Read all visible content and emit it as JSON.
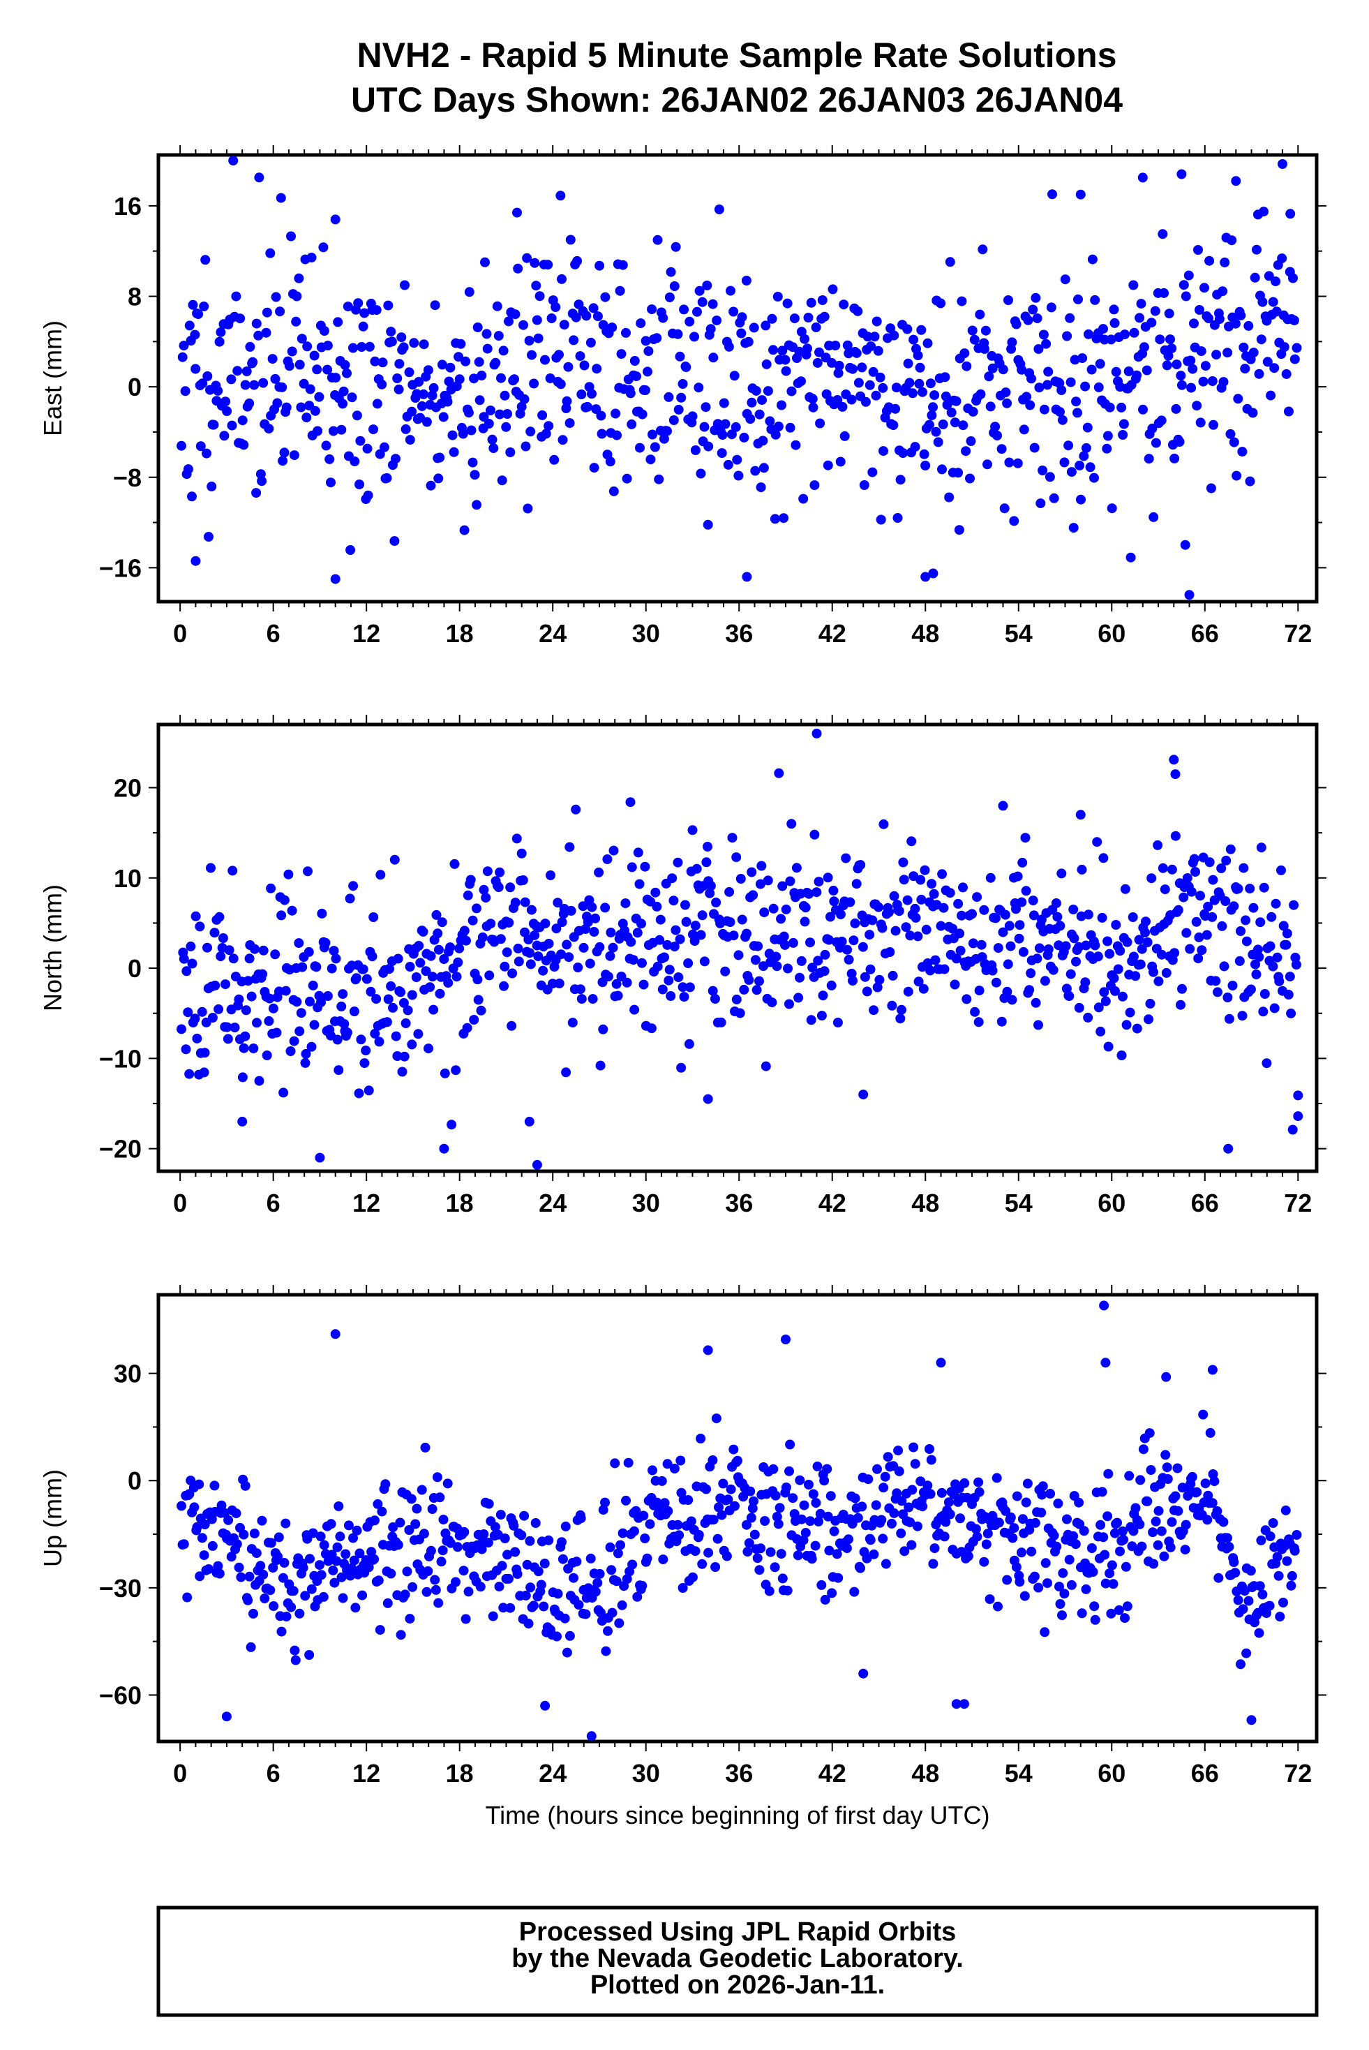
{
  "title": {
    "line1": "NVH2 - Rapid 5 Minute Sample Rate Solutions",
    "line2": "UTC Days Shown:  26JAN02 26JAN03 26JAN04"
  },
  "footer": {
    "line1": "Processed Using JPL Rapid Orbits",
    "line2": "by the Nevada Geodetic Laboratory.",
    "line3": "Plotted on 2026-Jan-11."
  },
  "colors": {
    "points": "#0000ff",
    "frame": "#000000"
  },
  "chart_data": [
    {
      "type": "scatter",
      "name": "east",
      "ylabel": "East (mm)",
      "xlabel": "",
      "xlim": [
        -1.4,
        73.2
      ],
      "ylim": [
        -19,
        20.5
      ],
      "x_ticks": [
        0,
        6,
        12,
        18,
        24,
        30,
        36,
        42,
        48,
        54,
        60,
        66,
        72
      ],
      "y_ticks": [
        -16,
        -8,
        0,
        8,
        16
      ],
      "y_tick_labels": [
        "−16",
        "−8",
        "0",
        "8",
        "16"
      ],
      "anchors": [
        [
          0,
          0
        ],
        [
          6,
          2
        ],
        [
          12,
          -1
        ],
        [
          18,
          -1
        ],
        [
          24,
          3
        ],
        [
          30,
          1
        ],
        [
          36,
          0
        ],
        [
          42,
          2
        ],
        [
          48,
          -1
        ],
        [
          54,
          0
        ],
        [
          60,
          0
        ],
        [
          66,
          2
        ],
        [
          72,
          6
        ]
      ],
      "spread": 5.5,
      "n_points": 860,
      "seed": 11,
      "outliers": [
        [
          1,
          -15.4
        ],
        [
          6.5,
          16.7
        ],
        [
          10,
          -17
        ],
        [
          10,
          14.8
        ],
        [
          21.7,
          15.4
        ],
        [
          24.5,
          16.9
        ],
        [
          34,
          -12.2
        ],
        [
          36.5,
          -16.8
        ],
        [
          48,
          -16.8
        ],
        [
          48.5,
          -16.5
        ],
        [
          62,
          18.5
        ],
        [
          64.5,
          18.8
        ],
        [
          65,
          -18.4
        ],
        [
          68,
          18.2
        ],
        [
          71,
          19.7
        ],
        [
          71.5,
          15.3
        ],
        [
          58,
          17
        ]
      ]
    },
    {
      "type": "scatter",
      "name": "north",
      "ylabel": "North (mm)",
      "xlabel": "",
      "xlim": [
        -1.4,
        73.2
      ],
      "ylim": [
        -22.5,
        27
      ],
      "x_ticks": [
        0,
        6,
        12,
        18,
        24,
        30,
        36,
        42,
        48,
        54,
        60,
        66,
        72
      ],
      "y_ticks": [
        -20,
        -10,
        0,
        10,
        20
      ],
      "y_tick_labels": [
        "−20",
        "−10",
        "0",
        "10",
        "20"
      ],
      "anchors": [
        [
          0,
          0
        ],
        [
          6,
          -2
        ],
        [
          12,
          -3
        ],
        [
          18,
          2
        ],
        [
          24,
          2
        ],
        [
          30,
          5
        ],
        [
          36,
          3
        ],
        [
          42,
          5
        ],
        [
          48,
          3
        ],
        [
          54,
          3
        ],
        [
          60,
          0
        ],
        [
          66,
          8
        ],
        [
          72,
          -3
        ]
      ],
      "spread": 5.2,
      "n_points": 860,
      "seed": 23,
      "outliers": [
        [
          4,
          -17
        ],
        [
          9,
          -21
        ],
        [
          17,
          -20
        ],
        [
          22.5,
          -17
        ],
        [
          23,
          -21.8
        ],
        [
          29,
          18.4
        ],
        [
          34,
          -14.5
        ],
        [
          41,
          26
        ],
        [
          44,
          -14
        ],
        [
          53,
          18
        ],
        [
          58,
          17
        ],
        [
          64,
          23.1
        ],
        [
          64.1,
          21.5
        ],
        [
          67.5,
          -20
        ],
        [
          72,
          -16.4
        ],
        [
          72,
          -14.1
        ],
        [
          33,
          15.3
        ]
      ]
    },
    {
      "type": "scatter",
      "name": "up",
      "ylabel": "Up (mm)",
      "xlabel": "Time (hours since beginning of first day UTC)",
      "xlim": [
        -1.4,
        73.2
      ],
      "ylim": [
        -73,
        52
      ],
      "x_ticks": [
        0,
        6,
        12,
        18,
        24,
        30,
        36,
        42,
        48,
        54,
        60,
        66,
        72
      ],
      "y_ticks": [
        -60,
        -30,
        0,
        30
      ],
      "y_tick_labels": [
        "−60",
        "−30",
        "0",
        "30"
      ],
      "anchors": [
        [
          0,
          -12
        ],
        [
          6,
          -28
        ],
        [
          12,
          -22
        ],
        [
          18,
          -18
        ],
        [
          24,
          -30
        ],
        [
          27,
          -30
        ],
        [
          30,
          -12
        ],
        [
          36,
          -8
        ],
        [
          42,
          -15
        ],
        [
          48,
          -4
        ],
        [
          54,
          -18
        ],
        [
          60,
          -18
        ],
        [
          66,
          -3
        ],
        [
          69,
          -38
        ],
        [
          72,
          -15
        ]
      ],
      "spread": 9.5,
      "n_points": 860,
      "seed": 37,
      "outliers": [
        [
          3,
          -66
        ],
        [
          10,
          41
        ],
        [
          23.5,
          -63
        ],
        [
          26.5,
          -71.5
        ],
        [
          34,
          36.5
        ],
        [
          39,
          39.5
        ],
        [
          44,
          -54
        ],
        [
          49,
          33
        ],
        [
          50,
          -62.5
        ],
        [
          50.5,
          -62.5
        ],
        [
          59.5,
          49
        ],
        [
          59.6,
          33
        ],
        [
          63.5,
          29
        ],
        [
          66.5,
          31
        ],
        [
          69,
          -67
        ]
      ]
    }
  ]
}
